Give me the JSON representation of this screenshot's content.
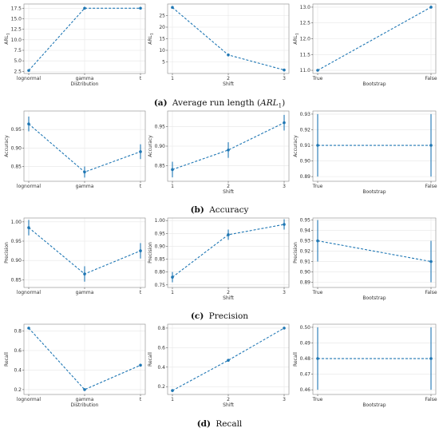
{
  "captions": [
    {
      "label": "(a)",
      "text": "Average run length (",
      "math": "ARL",
      "sub": "1",
      "close": ")"
    },
    {
      "label": "(b)",
      "text": "Accuracy"
    },
    {
      "label": "(c)",
      "text": "Precision"
    },
    {
      "label": "(d)",
      "text": "Recall"
    }
  ],
  "chart_data": [
    {
      "type": "line",
      "row": 0,
      "col": 0,
      "xlabel": "Distribution",
      "ylabel": "ARL",
      "ylabel_sub": "1",
      "categories": [
        "lognormal",
        "gamma",
        "t"
      ],
      "series": [
        {
          "values": [
            2.7,
            17.5,
            17.5
          ],
          "err": [
            0,
            0,
            0
          ]
        }
      ],
      "ylim": [
        2,
        18.5
      ],
      "yticks": [
        2.5,
        5.0,
        7.5,
        10.0,
        12.5,
        15.0,
        17.5
      ],
      "ytick_labels": [
        "2.5",
        "5.0",
        "7.5",
        "10.0",
        "12.5",
        "15.0",
        "17.5"
      ],
      "grid": true
    },
    {
      "type": "line",
      "row": 0,
      "col": 1,
      "xlabel": "Shift",
      "ylabel": "ARL",
      "ylabel_sub": "1",
      "categories": [
        "1",
        "2",
        "3"
      ],
      "series": [
        {
          "values": [
            28.5,
            8,
            1.5
          ],
          "err": [
            0,
            0,
            0
          ]
        }
      ],
      "ylim": [
        0,
        30
      ],
      "yticks": [
        5,
        10,
        15,
        20,
        25
      ],
      "ytick_labels": [
        "5",
        "10",
        "15",
        "20",
        "25"
      ],
      "grid": true
    },
    {
      "type": "line",
      "row": 0,
      "col": 2,
      "xlabel": "Bootstrap",
      "ylabel": "ARL",
      "ylabel_sub": "1",
      "categories": [
        "True",
        "False"
      ],
      "series": [
        {
          "values": [
            11.0,
            13.0
          ],
          "err": [
            0,
            0
          ]
        }
      ],
      "ylim": [
        10.9,
        13.1
      ],
      "yticks": [
        11.0,
        11.5,
        12.0,
        12.5,
        13.0
      ],
      "ytick_labels": [
        "11.0",
        "11.5",
        "12.0",
        "12.5",
        "13.0"
      ],
      "grid": true
    },
    {
      "type": "line",
      "row": 1,
      "col": 0,
      "xlabel": "",
      "ylabel": "Accuracy",
      "categories": [
        "lognormal",
        "gamma",
        "t"
      ],
      "series": [
        {
          "values": [
            0.965,
            0.835,
            0.89
          ],
          "err": [
            0.02,
            0.015,
            0.02
          ]
        }
      ],
      "ylim": [
        0.81,
        1.0
      ],
      "yticks": [
        0.85,
        0.9,
        0.95
      ],
      "ytick_labels": [
        "0.85",
        "0.90",
        "0.95"
      ],
      "grid": true
    },
    {
      "type": "line",
      "row": 1,
      "col": 1,
      "xlabel": "Shift",
      "ylabel": "Accuracy",
      "categories": [
        "1",
        "2",
        "3"
      ],
      "series": [
        {
          "values": [
            0.84,
            0.89,
            0.96
          ],
          "err": [
            0.02,
            0.02,
            0.02
          ]
        }
      ],
      "ylim": [
        0.81,
        0.99
      ],
      "yticks": [
        0.85,
        0.9,
        0.95
      ],
      "ytick_labels": [
        "0.85",
        "0.90",
        "0.95"
      ],
      "grid": true
    },
    {
      "type": "line",
      "row": 1,
      "col": 2,
      "xlabel": "Bootstrap",
      "ylabel": "Accuracy",
      "categories": [
        "True",
        "False"
      ],
      "series": [
        {
          "values": [
            0.91,
            0.91
          ],
          "err": [
            0.02,
            0.02
          ]
        }
      ],
      "ylim": [
        0.887,
        0.932
      ],
      "yticks": [
        0.89,
        0.9,
        0.91,
        0.92,
        0.93
      ],
      "ytick_labels": [
        "0.89",
        "0.90",
        "0.91",
        "0.92",
        "0.93"
      ],
      "grid": true
    },
    {
      "type": "line",
      "row": 2,
      "col": 0,
      "xlabel": "",
      "ylabel": "Precision",
      "categories": [
        "lognormal",
        "gamma",
        "t"
      ],
      "series": [
        {
          "values": [
            0.985,
            0.865,
            0.925
          ],
          "err": [
            0.02,
            0.02,
            0.02
          ]
        }
      ],
      "ylim": [
        0.83,
        1.01
      ],
      "yticks": [
        0.85,
        0.9,
        0.95,
        1.0
      ],
      "ytick_labels": [
        "0.85",
        "0.90",
        "0.95",
        "1.00"
      ],
      "grid": true
    },
    {
      "type": "line",
      "row": 2,
      "col": 1,
      "xlabel": "Shift",
      "ylabel": "Precision",
      "categories": [
        "1",
        "2",
        "3"
      ],
      "series": [
        {
          "values": [
            0.78,
            0.945,
            0.985
          ],
          "err": [
            0.02,
            0.02,
            0.02
          ]
        }
      ],
      "ylim": [
        0.74,
        1.01
      ],
      "yticks": [
        0.75,
        0.8,
        0.85,
        0.9,
        0.95,
        1.0
      ],
      "ytick_labels": [
        "0.75",
        "0.80",
        "0.85",
        "0.90",
        "0.95",
        "1.00"
      ],
      "grid": true
    },
    {
      "type": "line",
      "row": 2,
      "col": 2,
      "xlabel": "Bootstrap",
      "ylabel": "Precision",
      "categories": [
        "True",
        "False"
      ],
      "series": [
        {
          "values": [
            0.93,
            0.91
          ],
          "err": [
            0.02,
            0.02
          ]
        }
      ],
      "ylim": [
        0.885,
        0.952
      ],
      "yticks": [
        0.89,
        0.9,
        0.91,
        0.92,
        0.93,
        0.94,
        0.95
      ],
      "ytick_labels": [
        "0.89",
        "0.90",
        "0.91",
        "0.92",
        "0.93",
        "0.94",
        "0.95"
      ],
      "grid": true
    },
    {
      "type": "line",
      "row": 3,
      "col": 0,
      "xlabel": "Distribution",
      "ylabel": "Recall",
      "categories": [
        "lognormal",
        "gamma",
        "t"
      ],
      "series": [
        {
          "values": [
            0.83,
            0.2,
            0.45
          ],
          "err": [
            0.01,
            0.01,
            0.01
          ]
        }
      ],
      "ylim": [
        0.15,
        0.87
      ],
      "yticks": [
        0.2,
        0.4,
        0.6,
        0.8
      ],
      "ytick_labels": [
        "0.2",
        "0.4",
        "0.6",
        "0.8"
      ],
      "grid": true
    },
    {
      "type": "line",
      "row": 3,
      "col": 1,
      "xlabel": "Shift",
      "ylabel": "Recall",
      "categories": [
        "1",
        "2",
        "3"
      ],
      "series": [
        {
          "values": [
            0.16,
            0.47,
            0.8
          ],
          "err": [
            0.01,
            0.01,
            0.01
          ]
        }
      ],
      "ylim": [
        0.12,
        0.84
      ],
      "yticks": [
        0.2,
        0.4,
        0.6,
        0.8
      ],
      "ytick_labels": [
        "0.2",
        "0.4",
        "0.6",
        "0.8"
      ],
      "grid": true
    },
    {
      "type": "line",
      "row": 3,
      "col": 2,
      "xlabel": "Bootstrap",
      "ylabel": "Recall",
      "categories": [
        "True",
        "False"
      ],
      "series": [
        {
          "values": [
            0.48,
            0.48
          ],
          "err": [
            0.02,
            0.02
          ]
        }
      ],
      "ylim": [
        0.457,
        0.502
      ],
      "yticks": [
        0.46,
        0.47,
        0.48,
        0.49,
        0.5
      ],
      "ytick_labels": [
        "0.46",
        "0.47",
        "0.48",
        "0.49",
        "0.50"
      ],
      "grid": true
    }
  ],
  "colors": {
    "series": "#1f77b4",
    "grid": "#e6e6e6",
    "frame": "#888888"
  }
}
